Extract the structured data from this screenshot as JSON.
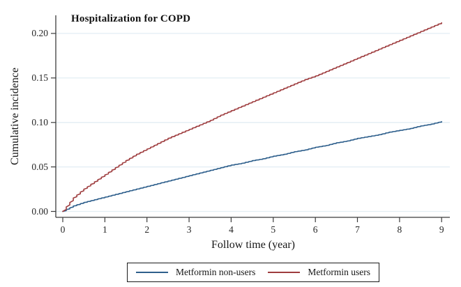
{
  "figure": {
    "title": "Hospitalization for COPD",
    "x_axis_label": "Follow time (year)",
    "y_axis_label": "Cumulative incidence"
  },
  "legend": {
    "items": [
      {
        "label": "Metformin non-users",
        "color": "#2e5f8c"
      },
      {
        "label": "Metformin users",
        "color": "#9e3c3e"
      }
    ]
  },
  "colors": {
    "grid": "#e2edf3",
    "axis": "#3b3b3b",
    "background": "#ffffff"
  },
  "chart_data": {
    "type": "line",
    "title": "Hospitalization for COPD",
    "xlabel": "Follow time (year)",
    "ylabel": "Cumulative incidence",
    "xlim": [
      0,
      9.2
    ],
    "ylim": [
      0,
      0.22
    ],
    "xticks": [
      0,
      1,
      2,
      3,
      4,
      5,
      6,
      7,
      8,
      9
    ],
    "yticks": [
      {
        "v": 0.0,
        "label": "0.00"
      },
      {
        "v": 0.05,
        "label": "0.05"
      },
      {
        "v": 0.1,
        "label": "0.10"
      },
      {
        "v": 0.15,
        "label": "0.15"
      },
      {
        "v": 0.2,
        "label": "0.20"
      }
    ],
    "grid": "horizontal-only",
    "legend_position": "bottom-center",
    "x": [
      0,
      0.25,
      0.5,
      0.75,
      1,
      1.25,
      1.5,
      1.75,
      2,
      2.25,
      2.5,
      2.75,
      3,
      3.25,
      3.5,
      3.75,
      4,
      4.25,
      4.5,
      4.75,
      5,
      5.25,
      5.5,
      5.75,
      6,
      6.25,
      6.5,
      6.75,
      7,
      7.25,
      7.5,
      7.75,
      8,
      8.25,
      8.5,
      8.75,
      9
    ],
    "series": [
      {
        "name": "Metformin non-users",
        "color": "#2e5f8c",
        "values": [
          0.0,
          0.006,
          0.01,
          0.013,
          0.016,
          0.019,
          0.022,
          0.025,
          0.028,
          0.031,
          0.034,
          0.037,
          0.04,
          0.043,
          0.046,
          0.049,
          0.052,
          0.054,
          0.057,
          0.059,
          0.062,
          0.064,
          0.067,
          0.069,
          0.072,
          0.074,
          0.077,
          0.079,
          0.082,
          0.084,
          0.086,
          0.089,
          0.091,
          0.093,
          0.096,
          0.098,
          0.101
        ]
      },
      {
        "name": "Metformin users",
        "color": "#9e3c3e",
        "values": [
          0.0,
          0.015,
          0.025,
          0.033,
          0.041,
          0.049,
          0.057,
          0.064,
          0.07,
          0.076,
          0.082,
          0.087,
          0.092,
          0.097,
          0.102,
          0.108,
          0.113,
          0.118,
          0.123,
          0.128,
          0.133,
          0.138,
          0.143,
          0.148,
          0.152,
          0.157,
          0.162,
          0.167,
          0.172,
          0.177,
          0.182,
          0.187,
          0.192,
          0.197,
          0.202,
          0.207,
          0.212
        ]
      }
    ]
  }
}
